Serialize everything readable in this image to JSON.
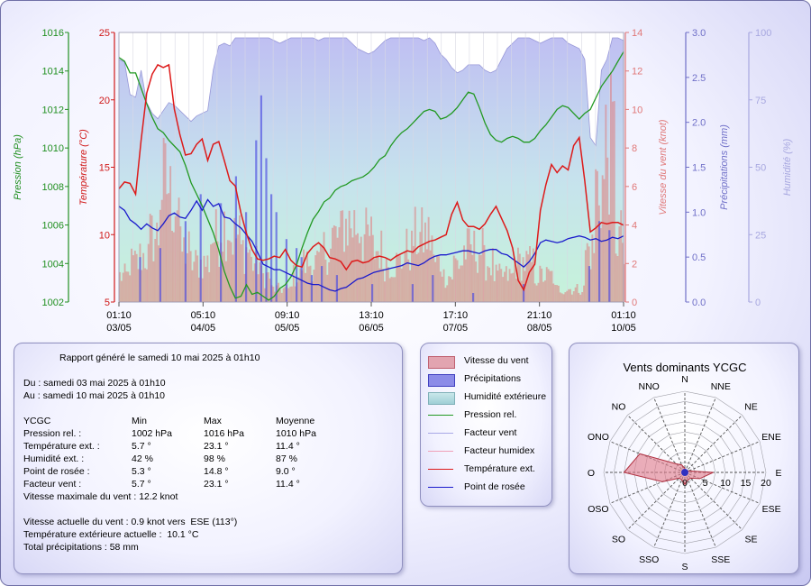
{
  "chart_data": [
    {
      "type": "line",
      "x_ticks": [
        {
          "time": "01:10",
          "date": "03/05"
        },
        {
          "time": "05:10",
          "date": "04/05"
        },
        {
          "time": "09:10",
          "date": "05/05"
        },
        {
          "time": "13:10",
          "date": "06/05"
        },
        {
          "time": "17:10",
          "date": "07/05"
        },
        {
          "time": "21:10",
          "date": "08/05"
        },
        {
          "time": "01:10",
          "date": "10/05"
        }
      ],
      "axes": {
        "pression": {
          "label": "Pression (hPa)",
          "min": 1002,
          "max": 1016,
          "ticks": [
            1002,
            1004,
            1006,
            1008,
            1010,
            1012,
            1014,
            1016
          ],
          "color": "#208f20"
        },
        "temperature": {
          "label": "Température (°C)",
          "min": 5,
          "max": 25,
          "ticks": [
            5,
            10,
            15,
            20,
            25
          ],
          "color": "#d01818"
        },
        "vent": {
          "label": "Vitesse du vent (knot)",
          "min": 0,
          "max": 14,
          "ticks": [
            0,
            2,
            4,
            6,
            8,
            10,
            12,
            14
          ],
          "color": "#e07878"
        },
        "precip": {
          "label": "Précipitations (mm)",
          "min": 0,
          "max": 3,
          "ticks": [
            "0.0",
            "0.5",
            "1.0",
            "1.5",
            "2.0",
            "2.5",
            "3.0"
          ],
          "color": "#7070c8"
        },
        "humidite": {
          "label": "Humidité (%)",
          "min": 0,
          "max": 100,
          "ticks": [
            0,
            25,
            50,
            75,
            100
          ],
          "color": "#a8a8e0"
        }
      },
      "series": {
        "pression": [
          1014.7,
          1014.5,
          1013.9,
          1013.9,
          1013.1,
          1012.3,
          1011.6,
          1011.0,
          1010.8,
          1010.4,
          1010.1,
          1009.8,
          1009.1,
          1008.2,
          1007.6,
          1007.0,
          1006.3,
          1005.6,
          1004.7,
          1003.6,
          1002.8,
          1002.2,
          1002.3,
          1002.9,
          1002.4,
          1002.5,
          1002.3,
          1002.1,
          1002.3,
          1002.7,
          1002.9,
          1003.3,
          1003.9,
          1004.8,
          1005.6,
          1006.3,
          1006.7,
          1007.2,
          1007.4,
          1007.8,
          1008.0,
          1008.1,
          1008.3,
          1008.4,
          1008.5,
          1008.7,
          1009.0,
          1009.4,
          1009.6,
          1010.1,
          1010.5,
          1010.8,
          1011.0,
          1011.3,
          1011.6,
          1011.9,
          1012.0,
          1011.9,
          1011.5,
          1011.6,
          1011.8,
          1012.1,
          1012.5,
          1012.9,
          1012.8,
          1012.1,
          1011.3,
          1010.7,
          1010.4,
          1010.3,
          1010.5,
          1010.6,
          1010.5,
          1010.3,
          1010.3,
          1010.5,
          1010.9,
          1011.2,
          1011.6,
          1012.0,
          1012.2,
          1012.1,
          1011.8,
          1011.5,
          1011.8,
          1012.0,
          1012.6,
          1013.2,
          1013.6,
          1014.0,
          1014.5,
          1015.0
        ],
        "temperature": [
          13.4,
          13.9,
          13.8,
          13.0,
          17.0,
          20.5,
          21.9,
          22.6,
          22.4,
          22.6,
          19.3,
          17.4,
          15.9,
          16.0,
          16.7,
          17.1,
          15.5,
          16.7,
          16.9,
          15.5,
          14.0,
          13.6,
          11.6,
          10.1,
          8.9,
          8.2,
          8.1,
          8.2,
          8.4,
          8.3,
          8.9,
          8.1,
          7.7,
          7.6,
          8.6,
          9.1,
          9.4,
          9.0,
          8.3,
          8.2,
          8.0,
          7.4,
          8.0,
          8.1,
          7.9,
          8.0,
          8.3,
          8.4,
          8.3,
          8.1,
          8.4,
          8.6,
          8.8,
          8.7,
          9.1,
          9.3,
          9.5,
          9.6,
          9.8,
          10.0,
          11.5,
          12.4,
          11.1,
          10.6,
          10.6,
          10.4,
          10.8,
          11.5,
          12.1,
          11.2,
          10.3,
          9.0,
          6.6,
          5.9,
          7.2,
          7.8,
          11.8,
          13.7,
          15.2,
          14.6,
          15.1,
          14.8,
          16.6,
          17.2,
          14.0,
          10.2,
          10.5,
          10.9,
          10.8,
          10.9,
          10.9,
          10.7
        ],
        "rosee": [
          12.1,
          11.8,
          11.1,
          10.8,
          10.4,
          10.8,
          10.5,
          10.3,
          10.8,
          11.4,
          11.6,
          11.3,
          11.2,
          11.8,
          12.5,
          11.8,
          12.6,
          12.1,
          12.3,
          11.3,
          11.2,
          10.8,
          10.5,
          10.0,
          9.5,
          8.7,
          7.8,
          7.6,
          7.4,
          7.4,
          7.2,
          7.0,
          6.8,
          6.6,
          6.4,
          6.3,
          6.3,
          6.1,
          5.9,
          5.8,
          6.0,
          6.1,
          6.4,
          6.7,
          6.8,
          7.0,
          7.2,
          7.3,
          7.4,
          7.5,
          7.6,
          7.7,
          7.9,
          7.8,
          7.7,
          7.9,
          8.2,
          8.4,
          8.5,
          8.5,
          8.6,
          8.7,
          8.8,
          8.8,
          8.7,
          8.6,
          8.8,
          8.9,
          8.9,
          8.6,
          8.5,
          8.2,
          7.9,
          7.6,
          8.0,
          8.6,
          9.4,
          9.6,
          9.5,
          9.4,
          9.5,
          9.7,
          9.8,
          9.9,
          9.8,
          9.6,
          9.7,
          9.5,
          9.6,
          9.8,
          9.7,
          9.9
        ],
        "humidite": [
          90,
          89,
          77,
          76,
          86,
          74,
          70,
          68,
          71,
          74,
          73,
          71,
          69,
          67,
          69,
          70,
          71,
          86,
          95,
          96,
          95,
          98,
          98,
          98,
          98,
          98,
          98,
          98,
          97,
          96,
          97,
          98,
          98,
          98,
          98,
          98,
          97,
          98,
          98,
          98,
          98,
          98,
          96,
          94,
          93,
          92,
          93,
          95,
          97,
          98,
          98,
          98,
          98,
          98,
          98,
          97,
          98,
          96,
          92,
          90,
          87,
          85,
          86,
          88,
          88,
          88,
          86,
          85,
          86,
          90,
          94,
          96,
          98,
          98,
          98,
          97,
          96,
          97,
          98,
          98,
          98,
          96,
          95,
          94,
          90,
          61,
          58,
          86,
          90,
          98,
          98,
          97
        ]
      },
      "wind_gust_max": 12.2,
      "precip_max": 2.3
    },
    {
      "type": "radar",
      "title": "Vents dominants YCGC",
      "directions": [
        "N",
        "NNE",
        "NE",
        "ENE",
        "E",
        "ESE",
        "SE",
        "SSE",
        "S",
        "SSO",
        "SO",
        "OSO",
        "O",
        "ONO",
        "NO",
        "NNO"
      ],
      "values": [
        1,
        0.5,
        0.5,
        1,
        7,
        4,
        2,
        2,
        3,
        2,
        2,
        6,
        15,
        12,
        3,
        2
      ],
      "rmax": 20,
      "ring_labels": [
        0,
        5,
        10,
        15,
        20
      ]
    }
  ],
  "legend": [
    {
      "label": "Vitesse du vent",
      "kind": "fill",
      "color": "#d87a8a"
    },
    {
      "label": "Précipitations",
      "kind": "fill",
      "color": "#5a5ae0"
    },
    {
      "label": "Humidité extérieure",
      "kind": "fill",
      "color": "#9fd6d9"
    },
    {
      "label": "Pression rel.",
      "kind": "line",
      "color": "#229922"
    },
    {
      "label": "Facteur vent",
      "kind": "line",
      "color": "#a8a8e6"
    },
    {
      "label": "Facteur humidex",
      "kind": "line",
      "color": "#f0a0b8"
    },
    {
      "label": "Température ext.",
      "kind": "line",
      "color": "#dd1a1a"
    },
    {
      "label": "Point de rosée",
      "kind": "line",
      "color": "#1a1acc"
    }
  ],
  "report": {
    "header": "Rapport généré le samedi 10 mai 2025 à 01h10",
    "from": "Du : samedi 03 mai 2025 à 01h10",
    "to": "Au : samedi 10 mai 2025 à 01h10",
    "station": "YCGC",
    "col_min": "Min",
    "col_max": "Max",
    "col_avg": "Moyenne",
    "rows": [
      {
        "label": "Pression rel. :",
        "min": "1002 hPa",
        "max": "1016 hPa",
        "avg": "1010 hPa"
      },
      {
        "label": "Température ext. :",
        "min": "5.7 °",
        "max": "23.1 °",
        "avg": "11.4 °"
      },
      {
        "label": "Humidité ext. :",
        "min": "42 %",
        "max": "98 %",
        "avg": "87 %"
      },
      {
        "label": "Point de rosée :",
        "min": "5.3 °",
        "max": "14.8 °",
        "avg": "9.0 °"
      },
      {
        "label": "Facteur vent :",
        "min": "5.7 °",
        "max": "23.1 °",
        "avg": "11.4 °"
      }
    ],
    "max_wind": "Vitesse maximale du vent : 12.2 knot",
    "current_wind": "Vitesse actuelle du vent : 0.9 knot vers  ESE (113°)",
    "current_temp": "Température extérieure actuelle :  10.1 °C",
    "total_precip": "Total précipitations : 58 mm"
  }
}
